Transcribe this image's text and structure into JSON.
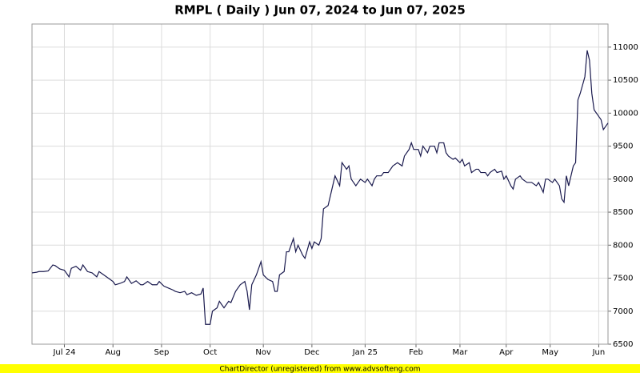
{
  "chart_data": {
    "type": "line",
    "title": "RMPL ( Daily ) Jun 07, 2024 to Jun 07, 2025",
    "footer": "ChartDirector (unregistered) from www.advsofteng.com",
    "series": [
      {
        "color": "#1a1a4e",
        "x": [
          0,
          2,
          3,
          5,
          7,
          9,
          10,
          12,
          14,
          16,
          17,
          19,
          21,
          22,
          24,
          26,
          28,
          29,
          31,
          33,
          35,
          36,
          38,
          40,
          41,
          43,
          45,
          47,
          48,
          50,
          52,
          54,
          55,
          57,
          59,
          61,
          62,
          64,
          66,
          67,
          69,
          71,
          73,
          74,
          75,
          77,
          78,
          80,
          81,
          83,
          85,
          86,
          88,
          90,
          92,
          93,
          94,
          95,
          97,
          99,
          100,
          102,
          104,
          105,
          106,
          107,
          109,
          110,
          111,
          113,
          114,
          115,
          117,
          118,
          120,
          121,
          122,
          124,
          125,
          126,
          128,
          130,
          131,
          133,
          134,
          136,
          137,
          138,
          140,
          141,
          142,
          144,
          145,
          147,
          148,
          149,
          151,
          152,
          154,
          156,
          158,
          160,
          161,
          163,
          164,
          165,
          167,
          168,
          169,
          171,
          172,
          174,
          175,
          176,
          178,
          179,
          180,
          182,
          183,
          185,
          186,
          187,
          189,
          190,
          192,
          193,
          194,
          196,
          197,
          198,
          200,
          201,
          203,
          204,
          205,
          207,
          208,
          209,
          211,
          212,
          214,
          215,
          216,
          218,
          219,
          221,
          222,
          223,
          225,
          226,
          228,
          229,
          230,
          231,
          232,
          234,
          235,
          236,
          237,
          239,
          240,
          241,
          242,
          243,
          245,
          246,
          247,
          249
        ],
        "values": [
          7580,
          7590,
          7600,
          7600,
          7610,
          7700,
          7690,
          7640,
          7620,
          7520,
          7650,
          7680,
          7620,
          7700,
          7600,
          7580,
          7520,
          7600,
          7550,
          7500,
          7450,
          7400,
          7420,
          7450,
          7520,
          7420,
          7460,
          7400,
          7400,
          7450,
          7400,
          7400,
          7450,
          7380,
          7350,
          7320,
          7300,
          7280,
          7300,
          7250,
          7280,
          7240,
          7260,
          7350,
          6800,
          6800,
          7000,
          7050,
          7150,
          7050,
          7150,
          7130,
          7300,
          7400,
          7450,
          7300,
          7020,
          7400,
          7550,
          7750,
          7550,
          7480,
          7450,
          7300,
          7300,
          7550,
          7600,
          7900,
          7900,
          8100,
          7900,
          8000,
          7850,
          7800,
          8050,
          7950,
          8050,
          8000,
          8100,
          8550,
          8600,
          8900,
          9050,
          8900,
          9250,
          9150,
          9200,
          9000,
          8900,
          8950,
          9000,
          8950,
          9000,
          8900,
          9000,
          9050,
          9050,
          9100,
          9100,
          9200,
          9250,
          9200,
          9350,
          9450,
          9550,
          9450,
          9450,
          9350,
          9500,
          9400,
          9500,
          9500,
          9400,
          9550,
          9550,
          9400,
          9350,
          9300,
          9320,
          9250,
          9300,
          9200,
          9250,
          9100,
          9150,
          9150,
          9100,
          9100,
          9050,
          9100,
          9150,
          9100,
          9120,
          9000,
          9050,
          8900,
          8850,
          9000,
          9050,
          9000,
          8950,
          8950,
          8950,
          8900,
          8950,
          8800,
          9000,
          9000,
          8950,
          9000,
          8900,
          8700,
          8650,
          9050,
          8900,
          9200,
          9250,
          10200,
          10300,
          10550,
          10950,
          10800,
          10300,
          10050,
          9950,
          9900,
          9750,
          9850
        ]
      }
    ],
    "xlim": [
      0,
      249
    ],
    "xticks": [
      {
        "value": 14,
        "label": "Jul 24"
      },
      {
        "value": 35,
        "label": "Aug"
      },
      {
        "value": 56,
        "label": "Sep"
      },
      {
        "value": 77,
        "label": "Oct"
      },
      {
        "value": 100,
        "label": "Nov"
      },
      {
        "value": 121,
        "label": "Dec"
      },
      {
        "value": 144,
        "label": "Jan 25"
      },
      {
        "value": 166,
        "label": "Feb"
      },
      {
        "value": 185,
        "label": "Mar"
      },
      {
        "value": 205,
        "label": "Apr"
      },
      {
        "value": 224,
        "label": "May"
      },
      {
        "value": 245,
        "label": "Jun"
      }
    ],
    "ylim": [
      6500,
      11350
    ],
    "yticks": [
      6500,
      7000,
      7500,
      8000,
      8500,
      9000,
      9500,
      10000,
      10500,
      11000
    ],
    "grid": true
  }
}
